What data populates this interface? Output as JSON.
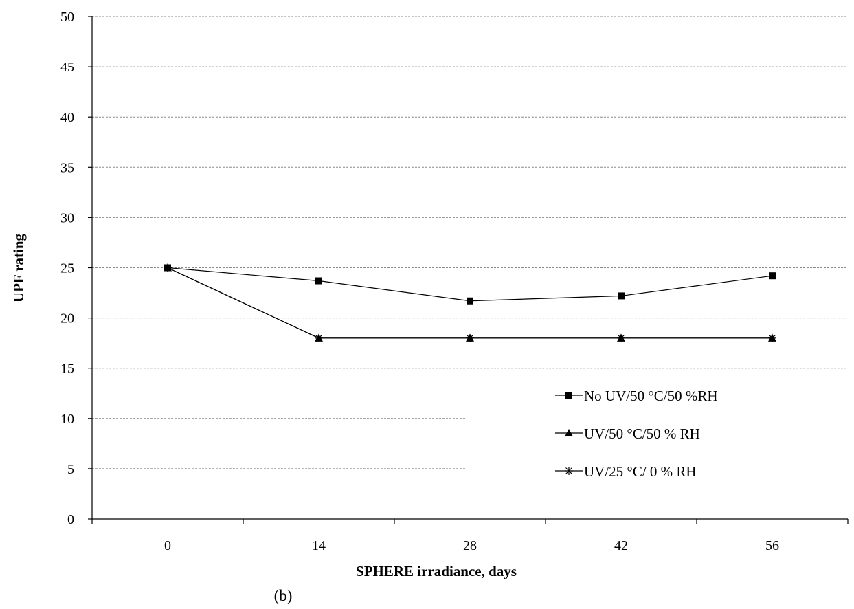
{
  "chart_data": {
    "type": "line",
    "caption": "(b)",
    "xlabel": "SPHERE irradiance, days",
    "ylabel": "UPF rating",
    "x": [
      0,
      14,
      28,
      42,
      56
    ],
    "x_tick_labels": [
      "0",
      "14",
      "28",
      "42",
      "56"
    ],
    "ylim": [
      0,
      50
    ],
    "y_ticks": [
      0,
      5,
      10,
      15,
      20,
      25,
      30,
      35,
      40,
      45,
      50
    ],
    "grid": "horizontal dashed",
    "legend_position": "bottom-right",
    "series": [
      {
        "name": "No UV/50 °C/50 %RH",
        "marker": "square",
        "values": [
          25,
          23.7,
          21.7,
          22.2,
          24.2
        ]
      },
      {
        "name": "UV/50 °C/50 % RH",
        "marker": "triangle",
        "values": [
          25,
          18,
          18,
          18,
          18
        ]
      },
      {
        "name": "UV/25  °C/ 0 % RH",
        "marker": "star",
        "values": [
          25,
          18,
          18,
          18,
          18
        ]
      }
    ]
  }
}
